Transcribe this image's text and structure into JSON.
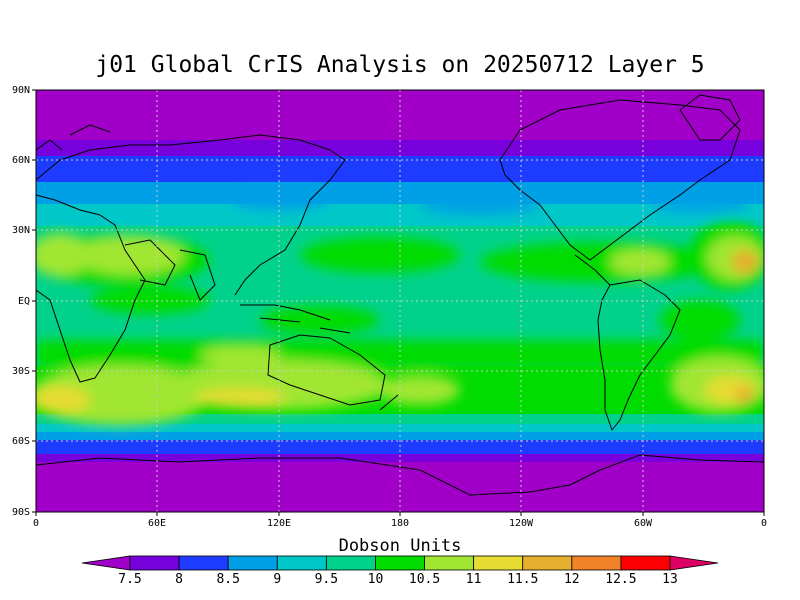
{
  "title": "j01 Global CrIS Analysis on 20250712 Layer 5",
  "colorbar": {
    "title": "Dobson Units",
    "ticks": [
      "7.5",
      "8",
      "8.5",
      "9",
      "9.5",
      "10",
      "10.5",
      "11",
      "11.5",
      "12",
      "12.5",
      "13"
    ],
    "colors": [
      "#a000c8",
      "#7800dc",
      "#1e3cff",
      "#00a0e6",
      "#00c8c8",
      "#00d28c",
      "#00dc00",
      "#a0e632",
      "#e6dc32",
      "#e6af2d",
      "#f08228",
      "#fa0000",
      "#dc0064"
    ]
  },
  "map": {
    "lat_ticks": [
      "90N",
      "60N",
      "30N",
      "EQ",
      "30S",
      "60S",
      "90S"
    ],
    "lon_ticks": [
      "0",
      "60E",
      "120E",
      "180",
      "120W",
      "60W",
      "0"
    ]
  }
}
